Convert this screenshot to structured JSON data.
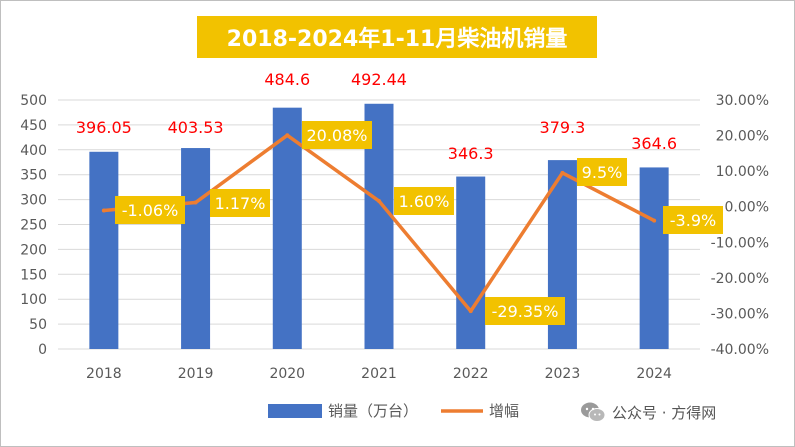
{
  "title": "2018-2024年1-11月柴油机销量",
  "watermark": "公众号 · 方得网",
  "colors": {
    "bar": "#4472c4",
    "line": "#ed7d31",
    "title_bg": "#f2c200",
    "label_bg": "#f2c200",
    "value_label": "#ff0000",
    "axis_text": "#595959",
    "grid": "#d9d9d9"
  },
  "chart_data": {
    "type": "bar",
    "categories": [
      "2018",
      "2019",
      "2020",
      "2021",
      "2022",
      "2023",
      "2024"
    ],
    "series": [
      {
        "name": "销量（万台）",
        "type": "bar",
        "axis": "left",
        "values": [
          396.05,
          403.53,
          484.6,
          492.44,
          346.3,
          379.3,
          364.6
        ],
        "labels": [
          "396.05",
          "403.53",
          "484.6",
          "492.44",
          "346.3",
          "379.3",
          "364.6"
        ]
      },
      {
        "name": "增幅",
        "type": "line",
        "axis": "right",
        "values": [
          -1.06,
          1.17,
          20.08,
          1.6,
          -29.35,
          9.5,
          -3.9
        ],
        "labels": [
          "-1.06%",
          "1.17%",
          "20.08%",
          "1.60%",
          "-29.35%",
          "9.5%",
          "-3.9%"
        ]
      }
    ],
    "y_left": {
      "lim": [
        0,
        500
      ],
      "ticks": [
        0,
        50,
        100,
        150,
        200,
        250,
        300,
        350,
        400,
        450,
        500
      ],
      "tick_labels": [
        "0",
        "50",
        "100",
        "150",
        "200",
        "250",
        "300",
        "350",
        "400",
        "450",
        "500"
      ]
    },
    "y_right": {
      "lim": [
        -40,
        30
      ],
      "ticks": [
        -40,
        -30,
        -20,
        -10,
        0,
        10,
        20,
        30
      ],
      "tick_labels": [
        "-40.00%",
        "-30.00%",
        "-20.00%",
        "-10.00%",
        "0.00%",
        "10.00%",
        "20.00%",
        "30.00%"
      ]
    },
    "grid": true,
    "legend": "bottom"
  }
}
